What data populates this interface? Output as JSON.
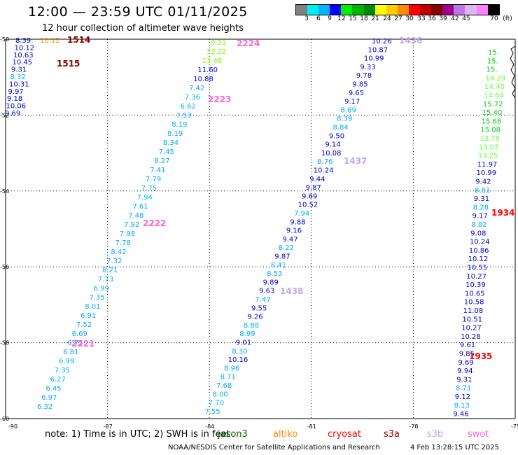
{
  "header": {
    "title": "12:00 — 23:59 UTC 01/11/2025",
    "subtitle": "12 hour collection of altimeter wave heights"
  },
  "color_scale": {
    "unit_label": "(ft)",
    "colors": [
      "#808080",
      "#00eeee",
      "#00b4ff",
      "#0000ff",
      "#00ee00",
      "#00b400",
      "#008c00",
      "#ffff00",
      "#ffcc00",
      "#ff8c00",
      "#ff0000",
      "#c00000",
      "#8b0000",
      "#9e0090",
      "#be78e6",
      "#e0b4f0",
      "#ff80ff",
      "#000000"
    ],
    "labels": [
      "3",
      "6",
      "9",
      "12",
      "15",
      "18",
      "21",
      "24",
      "27",
      "30",
      "33",
      "36",
      "39",
      "42",
      "45",
      "70"
    ]
  },
  "map": {
    "lon_ticks": [
      "-90",
      "-87",
      "-84",
      "-81",
      "-78",
      "-75"
    ],
    "lat_ticks": [
      "-50",
      "-52",
      "-54",
      "-56",
      "-58",
      "-60"
    ],
    "tracks": [
      {
        "points": [
          {
            "v": "9.31",
            "c": "#80ff00"
          },
          {
            "v": "13.22",
            "c": "#80ff00"
          },
          {
            "v": "13.46",
            "c": "#80ff00"
          },
          {
            "v": "11.60",
            "c": "#0000ff"
          },
          {
            "v": "10.88",
            "c": "#0000ff"
          },
          {
            "v": "7.42",
            "c": "#00aaff"
          },
          {
            "v": "7.36",
            "c": "#00aaff"
          },
          {
            "v": "6.62",
            "c": "#00aaff"
          },
          {
            "v": "7.53",
            "c": "#00aaff"
          },
          {
            "v": "8.19",
            "c": "#00aaff"
          },
          {
            "v": "8.19",
            "c": "#00aaff"
          },
          {
            "v": "8.34",
            "c": "#00aaff"
          },
          {
            "v": "7.45",
            "c": "#00aaff"
          },
          {
            "v": "8.27",
            "c": "#00aaff"
          },
          {
            "v": "7.41",
            "c": "#00aaff"
          },
          {
            "v": "7.79",
            "c": "#00aaff"
          },
          {
            "v": "7.75",
            "c": "#00aaff"
          },
          {
            "v": "7.94",
            "c": "#00aaff"
          },
          {
            "v": "7.61",
            "c": "#00aaff"
          },
          {
            "v": "7.48",
            "c": "#00aaff"
          },
          {
            "v": "7.92",
            "c": "#00aaff"
          },
          {
            "v": "7.98",
            "c": "#00aaff"
          },
          {
            "v": "7.78",
            "c": "#00aaff"
          },
          {
            "v": "8.42",
            "c": "#00aaff"
          },
          {
            "v": "7.32",
            "c": "#00aaff"
          },
          {
            "v": "8.21",
            "c": "#00aaff"
          },
          {
            "v": "7.73",
            "c": "#00aaff"
          },
          {
            "v": "6.99",
            "c": "#00aaff"
          },
          {
            "v": "7.35",
            "c": "#00aaff"
          },
          {
            "v": "8.01",
            "c": "#00aaff"
          },
          {
            "v": "6.91",
            "c": "#00aaff"
          },
          {
            "v": "7.52",
            "c": "#00aaff"
          },
          {
            "v": "6.69",
            "c": "#00aaff"
          },
          {
            "v": "6.75",
            "c": "#00aaff"
          },
          {
            "v": "6.81",
            "c": "#00aaff"
          },
          {
            "v": "6.99",
            "c": "#00aaff"
          },
          {
            "v": "7.35",
            "c": "#00aaff"
          },
          {
            "v": "6.27",
            "c": "#00aaff"
          },
          {
            "v": "6.45",
            "c": "#00aaff"
          },
          {
            "v": "6.97",
            "c": "#00aaff"
          },
          {
            "v": "6.32",
            "c": "#00aaff"
          }
        ]
      },
      {
        "points": [
          {
            "v": "10.26",
            "c": "#0000cc"
          },
          {
            "v": "10.87",
            "c": "#0000cc"
          },
          {
            "v": "10.99",
            "c": "#0000cc"
          },
          {
            "v": "9.33",
            "c": "#0000cc"
          },
          {
            "v": "9.78",
            "c": "#0000cc"
          },
          {
            "v": "9.85",
            "c": "#0000cc"
          },
          {
            "v": "9.65",
            "c": "#0000cc"
          },
          {
            "v": "9.17",
            "c": "#0000cc"
          },
          {
            "v": "8.69",
            "c": "#00aaff"
          },
          {
            "v": "8.39",
            "c": "#00aaff"
          },
          {
            "v": "8.84",
            "c": "#00aaff"
          },
          {
            "v": "9.50",
            "c": "#0000cc"
          },
          {
            "v": "9.14",
            "c": "#0000cc"
          },
          {
            "v": "10.08",
            "c": "#0000cc"
          },
          {
            "v": "8.76",
            "c": "#00aaff"
          },
          {
            "v": "10.24",
            "c": "#0000cc"
          },
          {
            "v": "9.44",
            "c": "#0000cc"
          },
          {
            "v": "9.87",
            "c": "#0000cc"
          },
          {
            "v": "9.69",
            "c": "#0000cc"
          },
          {
            "v": "10.52",
            "c": "#0000cc"
          },
          {
            "v": "7.94",
            "c": "#00aaff"
          },
          {
            "v": "9.88",
            "c": "#0000cc"
          },
          {
            "v": "9.16",
            "c": "#0000cc"
          },
          {
            "v": "9.47",
            "c": "#0000cc"
          },
          {
            "v": "8.22",
            "c": "#00aaff"
          },
          {
            "v": "9.87",
            "c": "#0000cc"
          },
          {
            "v": "8.41",
            "c": "#00aaff"
          },
          {
            "v": "8.53",
            "c": "#00aaff"
          },
          {
            "v": "9.89",
            "c": "#0000cc"
          },
          {
            "v": "9.63",
            "c": "#0000cc"
          },
          {
            "v": "7.47",
            "c": "#00aaff"
          },
          {
            "v": "9.55",
            "c": "#0000cc"
          },
          {
            "v": "9.26",
            "c": "#0000cc"
          },
          {
            "v": "8.88",
            "c": "#00aaff"
          },
          {
            "v": "8.99",
            "c": "#00aaff"
          },
          {
            "v": "9.01",
            "c": "#0000cc"
          },
          {
            "v": "8.30",
            "c": "#00aaff"
          },
          {
            "v": "10.16",
            "c": "#0000cc"
          },
          {
            "v": "8.96",
            "c": "#00aaff"
          },
          {
            "v": "8.71",
            "c": "#00aaff"
          },
          {
            "v": "7.68",
            "c": "#00aaff"
          },
          {
            "v": "8.00",
            "c": "#00aaff"
          },
          {
            "v": "7.70",
            "c": "#00aaff"
          },
          {
            "v": "7.55",
            "c": "#00aaff"
          }
        ]
      },
      {
        "points": [
          {
            "v": "15.",
            "c": "#00cc00"
          },
          {
            "v": "15.",
            "c": "#00cc00"
          },
          {
            "v": "15.",
            "c": "#00cc00"
          },
          {
            "v": "14.29",
            "c": "#66ff33"
          },
          {
            "v": "14.40",
            "c": "#66ff33"
          },
          {
            "v": "14.64",
            "c": "#66ff33"
          },
          {
            "v": "15.72",
            "c": "#00cc00"
          },
          {
            "v": "15.40",
            "c": "#00cc00"
          },
          {
            "v": "15.68",
            "c": "#00cc00"
          },
          {
            "v": "15.08",
            "c": "#00cc00"
          },
          {
            "v": "13.78",
            "c": "#66ff33"
          },
          {
            "v": "13.07",
            "c": "#66ff33"
          },
          {
            "v": "13.25",
            "c": "#66ff33"
          },
          {
            "v": "11.97",
            "c": "#0000cc"
          },
          {
            "v": "10.99",
            "c": "#0000cc"
          },
          {
            "v": "9.42",
            "c": "#0000cc"
          },
          {
            "v": "8.81",
            "c": "#00aaff"
          },
          {
            "v": "9.31",
            "c": "#0000cc"
          },
          {
            "v": "8.28",
            "c": "#00aaff"
          },
          {
            "v": "9.17",
            "c": "#0000cc"
          },
          {
            "v": "8.82",
            "c": "#00aaff"
          },
          {
            "v": "9.08",
            "c": "#0000cc"
          },
          {
            "v": "10.24",
            "c": "#0000cc"
          },
          {
            "v": "10.86",
            "c": "#0000cc"
          },
          {
            "v": "10.12",
            "c": "#0000cc"
          },
          {
            "v": "10.55",
            "c": "#0000cc"
          },
          {
            "v": "10.27",
            "c": "#0000cc"
          },
          {
            "v": "10.39",
            "c": "#0000cc"
          },
          {
            "v": "10.65",
            "c": "#0000cc"
          },
          {
            "v": "10.58",
            "c": "#0000cc"
          },
          {
            "v": "11.08",
            "c": "#0000cc"
          },
          {
            "v": "10.51",
            "c": "#0000cc"
          },
          {
            "v": "10.27",
            "c": "#0000cc"
          },
          {
            "v": "10.28",
            "c": "#0000cc"
          },
          {
            "v": "9.61",
            "c": "#0000cc"
          },
          {
            "v": "9.85",
            "c": "#0000cc"
          },
          {
            "v": "9.69",
            "c": "#0000cc"
          },
          {
            "v": "9.94",
            "c": "#0000cc"
          },
          {
            "v": "9.31",
            "c": "#0000cc"
          },
          {
            "v": "8.71",
            "c": "#00aaff"
          },
          {
            "v": "9.12",
            "c": "#0000cc"
          },
          {
            "v": "8.13",
            "c": "#00aaff"
          },
          {
            "v": "9.46",
            "c": "#0000cc"
          }
        ]
      },
      {
        "points": [
          {
            "v": "8.39",
            "c": "#0000cc"
          },
          {
            "v": "10.12",
            "c": "#0000cc"
          },
          {
            "v": "10.63",
            "c": "#0000cc"
          },
          {
            "v": "10.45",
            "c": "#0000cc"
          },
          {
            "v": "9.31",
            "c": "#0000cc"
          },
          {
            "v": "8.32",
            "c": "#00aaff"
          },
          {
            "v": "10.31",
            "c": "#0000cc"
          },
          {
            "v": "9.97",
            "c": "#0000cc"
          },
          {
            "v": "9.18",
            "c": "#0000cc"
          },
          {
            "v": "10.06",
            "c": "#0000cc"
          },
          {
            "v": "9.69",
            "c": "#0000cc"
          }
        ]
      },
      {
        "points": [
          {
            "v": "10.12",
            "c": "#ff8c00"
          }
        ]
      }
    ],
    "pass_labels": [
      {
        "text": "1514",
        "c": "#8b0000"
      },
      {
        "text": "1515",
        "c": "#8b0000"
      },
      {
        "text": "2224",
        "c": "#ff66cc"
      },
      {
        "text": "2223",
        "c": "#ff66cc"
      },
      {
        "text": "2222",
        "c": "#ff66cc"
      },
      {
        "text": "2221",
        "c": "#ff66cc"
      },
      {
        "text": "1436",
        "c": "#c0a8e8"
      },
      {
        "text": "1437",
        "c": "#c0a8e8"
      },
      {
        "text": "1438",
        "c": "#c0a8e8"
      },
      {
        "text": "1934",
        "c": "#ff0000"
      },
      {
        "text": "1935",
        "c": "#ff0000"
      }
    ]
  },
  "footer": {
    "note": "note: 1) Time is in UTC; 2) SWH is in feet",
    "satellites": [
      {
        "name": "jason3",
        "color": "#006400"
      },
      {
        "name": "altiko",
        "color": "#ff8c00"
      },
      {
        "name": "cryosat",
        "color": "#ff0000"
      },
      {
        "name": "s3a",
        "color": "#8b0000"
      },
      {
        "name": "s3b",
        "color": "#c0a8e8"
      },
      {
        "name": "swot",
        "color": "#ff66cc"
      }
    ],
    "credit": "NOAA/NESDIS Center for Satellite Applications and Research",
    "timestamp": "4 Feb 13:28:15 UTC 2025"
  }
}
